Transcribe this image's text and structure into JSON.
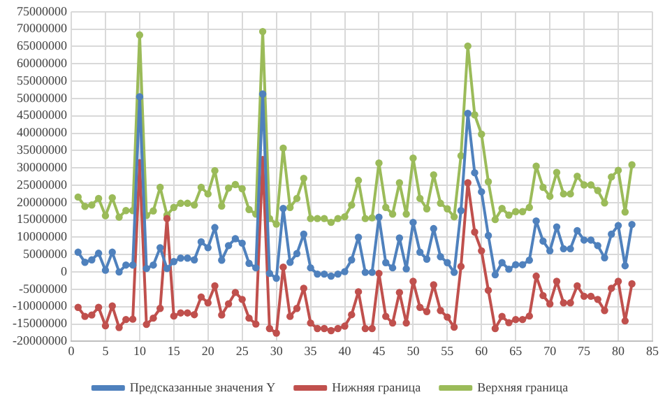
{
  "chart_data": {
    "type": "line",
    "x": [
      1,
      2,
      3,
      4,
      5,
      6,
      7,
      8,
      9,
      10,
      11,
      12,
      13,
      14,
      15,
      16,
      17,
      18,
      19,
      20,
      21,
      22,
      23,
      24,
      25,
      26,
      27,
      28,
      29,
      30,
      31,
      32,
      33,
      34,
      35,
      36,
      37,
      38,
      39,
      40,
      41,
      42,
      43,
      44,
      45,
      46,
      47,
      48,
      49,
      50,
      51,
      52,
      53,
      54,
      55,
      56,
      57,
      58,
      59,
      60,
      61,
      62,
      63,
      64,
      65,
      66,
      67,
      68,
      69,
      70,
      71,
      72,
      73,
      74,
      75,
      76,
      77,
      78,
      79,
      80,
      81,
      82
    ],
    "series": [
      {
        "name": "Предсказанные значения Y",
        "color": "#4f81bd",
        "values": [
          5700000,
          2800000,
          3500000,
          5400000,
          500000,
          5700000,
          0,
          2000000,
          2000000,
          50500000,
          1000000,
          2000000,
          7000000,
          1000000,
          3000000,
          4000000,
          4000000,
          3500000,
          8700000,
          7000000,
          12800000,
          3400000,
          7600000,
          9600000,
          8300000,
          2500000,
          1200000,
          51300000,
          -400000,
          -1800000,
          18300000,
          2800000,
          5300000,
          10900000,
          1200000,
          -600000,
          -600000,
          -1200000,
          -600000,
          100000,
          3500000,
          10000000,
          -100000,
          -100000,
          15800000,
          2700000,
          1200000,
          9800000,
          900000,
          14300000,
          5700000,
          3700000,
          12500000,
          4400000,
          2700000,
          -100000,
          17700000,
          45700000,
          28600000,
          23100000,
          10500000,
          -800000,
          2700000,
          800000,
          2100000,
          2100000,
          3400000,
          14700000,
          8900000,
          6100000,
          13000000,
          6700000,
          6700000,
          11900000,
          9200000,
          9200000,
          7600000,
          4100000,
          10900000,
          13400000,
          1800000,
          13700000
        ]
      },
      {
        "name": "Нижняя граница",
        "color": "#c0504d",
        "values": [
          -10200000,
          -12800000,
          -12400000,
          -10200000,
          -15500000,
          -9800000,
          -16000000,
          -13700000,
          -13600000,
          31500000,
          -15100000,
          -13300000,
          -10500000,
          15400000,
          -12700000,
          -11800000,
          -11800000,
          -12300000,
          -7200000,
          -8900000,
          -4000000,
          -12400000,
          -9200000,
          -5900000,
          -7900000,
          -13300000,
          -15000000,
          32400000,
          -16300000,
          -17600000,
          1400000,
          -12800000,
          -10500000,
          -4700000,
          -14700000,
          -16300000,
          -16300000,
          -16900000,
          -16300000,
          -15600000,
          -12300000,
          -5700000,
          -16300000,
          -16300000,
          -400000,
          -12800000,
          -14700000,
          -5900000,
          -14700000,
          -2700000,
          -10200000,
          -11400000,
          -3700000,
          -11100000,
          -13000000,
          -15900000,
          1600000,
          25700000,
          11500000,
          6100000,
          -5300000,
          -16300000,
          -12800000,
          -14600000,
          -13700000,
          -13700000,
          -12700000,
          -1200000,
          -6800000,
          -9200000,
          -2700000,
          -8900000,
          -8900000,
          -4000000,
          -7000000,
          -7000000,
          -7900000,
          -11100000,
          -4700000,
          -2700000,
          -14100000,
          -3400000
        ]
      },
      {
        "name": "Верхняя граница",
        "color": "#9bbb59",
        "values": [
          21600000,
          18900000,
          19300000,
          21200000,
          16200000,
          21400000,
          15800000,
          17700000,
          17700000,
          68300000,
          16300000,
          17600000,
          24400000,
          16400000,
          18600000,
          19800000,
          19800000,
          19300000,
          24400000,
          22500000,
          29200000,
          19000000,
          24200000,
          25200000,
          24000000,
          18000000,
          16700000,
          69300000,
          15400000,
          13800000,
          35700000,
          18600000,
          21200000,
          27000000,
          15400000,
          15400000,
          15400000,
          14300000,
          15400000,
          15900000,
          19300000,
          26400000,
          15400000,
          15600000,
          31400000,
          18600000,
          16700000,
          25700000,
          16700000,
          32800000,
          21200000,
          18200000,
          28000000,
          19800000,
          18200000,
          15900000,
          33500000,
          65100000,
          45300000,
          39700000,
          26000000,
          15100000,
          18300000,
          16400000,
          17400000,
          17400000,
          18600000,
          30500000,
          24400000,
          21800000,
          28700000,
          22500000,
          22500000,
          27600000,
          25100000,
          25100000,
          23500000,
          19900000,
          27400000,
          29300000,
          17300000,
          30900000
        ]
      }
    ],
    "xlim": [
      0,
      85
    ],
    "xticks": [
      0,
      5,
      10,
      15,
      20,
      25,
      30,
      35,
      40,
      45,
      50,
      55,
      60,
      65,
      70,
      75,
      80,
      85
    ],
    "ylim": [
      -20000000,
      75000000
    ],
    "yticks": [
      -20000000,
      -15000000,
      -10000000,
      -5000000,
      0,
      5000000,
      10000000,
      15000000,
      20000000,
      25000000,
      30000000,
      35000000,
      40000000,
      45000000,
      50000000,
      55000000,
      60000000,
      65000000,
      70000000,
      75000000
    ],
    "grid": true,
    "legend": "bottom",
    "marker": "circle",
    "line_style": "solid"
  }
}
